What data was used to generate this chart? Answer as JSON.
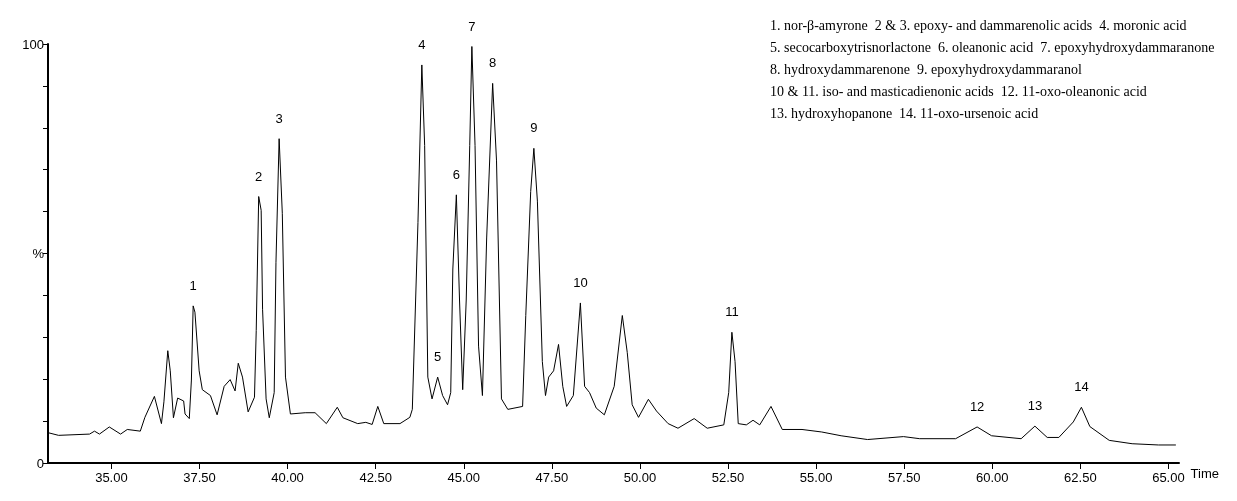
{
  "chart_data": {
    "type": "line",
    "xlabel": "Time",
    "xlim": [
      33.2,
      65.3
    ],
    "ylim": [
      0,
      100
    ],
    "xticks": [
      {
        "value": 35,
        "label": "35.00"
      },
      {
        "value": 37.5,
        "label": "37.50"
      },
      {
        "value": 40,
        "label": "40.00"
      },
      {
        "value": 42.5,
        "label": "42.50"
      },
      {
        "value": 45,
        "label": "45.00"
      },
      {
        "value": 47.5,
        "label": "47.50"
      },
      {
        "value": 50,
        "label": "50.00"
      },
      {
        "value": 52.5,
        "label": "52.50"
      },
      {
        "value": 55,
        "label": "55.00"
      },
      {
        "value": 57.5,
        "label": "57.50"
      },
      {
        "value": 60,
        "label": "60.00"
      },
      {
        "value": 62.5,
        "label": "62.50"
      },
      {
        "value": 65,
        "label": "65.00"
      }
    ],
    "yticks": [
      0,
      {
        "value": 10,
        "label": null
      },
      {
        "value": 20,
        "label": null
      },
      {
        "value": 30,
        "label": null
      },
      {
        "value": 40,
        "label": null
      },
      {
        "value": 50,
        "label": "%"
      },
      {
        "value": 60,
        "label": null
      },
      {
        "value": 70,
        "label": null
      },
      {
        "value": 80,
        "label": null
      },
      {
        "value": 90,
        "label": null
      },
      100
    ],
    "series": [
      {
        "color": "#000000",
        "x": [
          33.22,
          33.5,
          34.38,
          34.52,
          34.66,
          34.94,
          35.26,
          35.45,
          35.82,
          35.95,
          36.22,
          36.42,
          36.49,
          36.6,
          36.67,
          36.76,
          36.88,
          37.05,
          37.09,
          37.21,
          37.27,
          37.32,
          37.37,
          37.49,
          37.58,
          37.81,
          38.0,
          38.2,
          38.37,
          38.51,
          38.6,
          38.72,
          38.88,
          39.06,
          39.11,
          39.18,
          39.25,
          39.29,
          39.39,
          39.48,
          39.62,
          39.67,
          39.76,
          39.85,
          39.94,
          40.08,
          40.5,
          40.78,
          41.1,
          41.41,
          41.57,
          41.99,
          42.22,
          42.4,
          42.56,
          42.73,
          43.19,
          43.47,
          43.54,
          43.7,
          43.81,
          43.89,
          43.98,
          44.1,
          44.26,
          44.4,
          44.54,
          44.63,
          44.69,
          44.79,
          44.88,
          44.97,
          45.07,
          45.17,
          45.23,
          45.32,
          45.42,
          45.53,
          45.65,
          45.82,
          45.93,
          46.07,
          46.25,
          46.67,
          46.76,
          46.9,
          46.99,
          47.09,
          47.23,
          47.32,
          47.41,
          47.55,
          47.69,
          47.81,
          47.92,
          48.11,
          48.31,
          48.43,
          48.57,
          48.76,
          48.99,
          49.27,
          49.5,
          49.64,
          49.78,
          49.96,
          50.24,
          50.47,
          50.8,
          51.08,
          51.54,
          51.91,
          52.38,
          52.52,
          52.61,
          52.7,
          52.79,
          53.02,
          53.21,
          53.4,
          53.72,
          54.04,
          54.6,
          55.16,
          55.71,
          56.46,
          57.48,
          57.94,
          58.96,
          59.57,
          59.98,
          60.82,
          61.21,
          61.56,
          61.89,
          62.3,
          62.53,
          62.77,
          63.32,
          63.97,
          64.72,
          65.2
        ],
        "values": [
          7.2,
          6.6,
          6.9,
          7.6,
          6.9,
          8.6,
          6.9,
          8.0,
          7.6,
          10.9,
          15.9,
          9.4,
          14.6,
          26.8,
          22.0,
          10.8,
          15.5,
          14.8,
          11.7,
          10.6,
          19.8,
          37.5,
          36.0,
          22.0,
          17.5,
          16.1,
          11.5,
          18.3,
          19.9,
          17.2,
          23.8,
          20.5,
          12.2,
          15.7,
          31.6,
          63.6,
          60.3,
          36.7,
          15.3,
          10.8,
          16.8,
          47.8,
          77.4,
          59.6,
          20.5,
          11.7,
          12.0,
          12.0,
          9.4,
          13.3,
          10.8,
          9.4,
          9.7,
          9.2,
          13.5,
          9.4,
          9.4,
          10.9,
          12.8,
          57.4,
          95.0,
          75.8,
          20.5,
          15.3,
          20.5,
          16.1,
          13.9,
          16.8,
          46.3,
          64.0,
          38.9,
          17.5,
          38.9,
          75.8,
          99.4,
          75.8,
          27.9,
          16.1,
          53.7,
          90.6,
          72.1,
          15.3,
          12.8,
          13.5,
          35.2,
          64.8,
          75.1,
          62.5,
          24.2,
          16.1,
          20.5,
          22.0,
          28.3,
          18.3,
          13.5,
          16.1,
          38.2,
          18.3,
          16.8,
          13.1,
          11.5,
          18.3,
          35.2,
          26.4,
          13.9,
          10.9,
          15.2,
          12.4,
          9.4,
          8.3,
          10.6,
          8.3,
          9.1,
          16.8,
          31.2,
          24.2,
          9.4,
          9.1,
          10.2,
          9.1,
          13.5,
          8.0,
          8.0,
          7.4,
          6.5,
          5.6,
          6.3,
          5.8,
          5.8,
          8.6,
          6.5,
          5.8,
          8.8,
          6.1,
          6.1,
          9.8,
          13.3,
          8.7,
          5.4,
          4.6,
          4.3,
          4.3
        ]
      }
    ],
    "annotations": [
      {
        "text": "1",
        "x": 37.32,
        "y": 37.5
      },
      {
        "text": "2",
        "x": 39.18,
        "y": 63.6
      },
      {
        "text": "3",
        "x": 39.76,
        "y": 77.4
      },
      {
        "text": "4",
        "x": 43.81,
        "y": 95.0
      },
      {
        "text": "5",
        "x": 44.26,
        "y": 20.5
      },
      {
        "text": "6",
        "x": 44.79,
        "y": 64.0
      },
      {
        "text": "7",
        "x": 45.23,
        "y": 99.4
      },
      {
        "text": "8",
        "x": 45.82,
        "y": 90.6
      },
      {
        "text": "9",
        "x": 46.99,
        "y": 75.1
      },
      {
        "text": "10",
        "x": 48.31,
        "y": 38.2
      },
      {
        "text": "11",
        "x": 52.61,
        "y": 31.2
      },
      {
        "text": "12",
        "x": 59.57,
        "y": 8.6
      },
      {
        "text": "13",
        "x": 61.21,
        "y": 8.8
      },
      {
        "text": "14",
        "x": 62.53,
        "y": 13.3
      },
      "1. nor-β-amyrone  2 & 3. epoxy- and dammarenolic acids  4. moronic acid",
      "5. secocarboxytrisnorlactone  6. oleanonic acid  7. epoxyhydroxydammaranone",
      "8. hydroxydammarenone  9. epoxyhydroxydammaranol",
      "10 & 11. iso- and masticadienonic acids  12. 11-oxo-oleanonic acid",
      "13. hydroxyhopanone  14. 11-oxo-ursenoic acid"
    ],
    "grid": false,
    "marker": "none",
    "line_style": "solid"
  }
}
